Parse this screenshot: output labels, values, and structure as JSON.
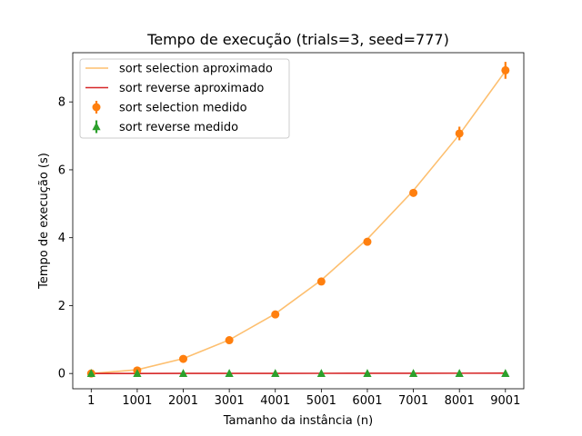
{
  "chart_data": {
    "type": "line",
    "title": "Tempo de execução (trials=3, seed=777)",
    "xlabel": "Tamanho da instância (n)",
    "ylabel": "Tempo de execução (s)",
    "x": [
      1,
      1001,
      2001,
      3001,
      4001,
      5001,
      6001,
      7001,
      8001,
      9001
    ],
    "xlim": [
      -400,
      9400
    ],
    "ylim": [
      -0.45,
      9.45
    ],
    "xticks": [
      1,
      1001,
      2001,
      3001,
      4001,
      5001,
      6001,
      7001,
      8001,
      9001
    ],
    "yticks": [
      0,
      2,
      4,
      6,
      8
    ],
    "grid": false,
    "legend_position": "top-left",
    "series": [
      {
        "name": "sort selection aproximado",
        "kind": "line",
        "color": "#fdbf6f",
        "values": [
          0.0,
          0.11,
          0.44,
          0.99,
          1.76,
          2.75,
          3.96,
          5.39,
          7.04,
          8.91
        ]
      },
      {
        "name": "sort reverse aproximado",
        "kind": "line",
        "color": "#d62728",
        "values": [
          0.0,
          0.001,
          0.002,
          0.003,
          0.004,
          0.005,
          0.006,
          0.007,
          0.008,
          0.009
        ]
      },
      {
        "name": "sort selection medido",
        "kind": "errorbar",
        "marker": "circle",
        "color": "#ff7f0e",
        "values": [
          0.0,
          0.09,
          0.43,
          0.98,
          1.74,
          2.71,
          3.88,
          5.32,
          7.07,
          8.93
        ],
        "errors": [
          0.0,
          0.0,
          0.0,
          0.0,
          0.0,
          0.0,
          0.0,
          0.0,
          0.2,
          0.25
        ]
      },
      {
        "name": "sort reverse medido",
        "kind": "errorbar",
        "marker": "triangle",
        "color": "#2ca02c",
        "values": [
          0.0,
          0.0,
          0.0,
          0.0,
          0.0,
          0.0,
          0.0,
          0.0,
          0.0,
          0.0
        ],
        "errors": [
          0.0,
          0.0,
          0.0,
          0.0,
          0.0,
          0.0,
          0.0,
          0.0,
          0.0,
          0.0
        ]
      }
    ]
  }
}
